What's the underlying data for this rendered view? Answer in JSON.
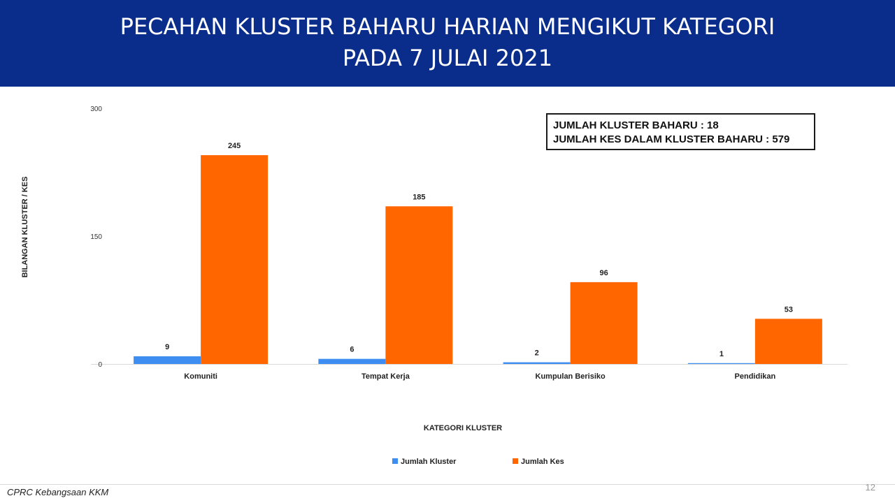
{
  "header": {
    "title_line1": "PECAHAN KLUSTER BAHARU HARIAN MENGIKUT KATEGORI",
    "title_line2": "PADA 7 JULAI 2021",
    "background_color": "#0a2d8c"
  },
  "summary": {
    "line1": "JUMLAH KLUSTER BAHARU : 18",
    "line2": "JUMLAH KES DALAM KLUSTER BAHARU : 579"
  },
  "chart_data": {
    "type": "bar",
    "title": "PECAHAN KLUSTER BAHARU HARIAN MENGIKUT KATEGORI PADA 7 JULAI 2021",
    "xlabel": "KATEGORI KLUSTER",
    "ylabel": "BILANGAN KLUSTER / KES",
    "categories": [
      "Komuniti",
      "Tempat Kerja",
      "Kumpulan Berisiko",
      "Pendidikan"
    ],
    "series": [
      {
        "name": "Jumlah Kluster",
        "values": [
          9,
          6,
          2,
          1
        ],
        "color": "#3d8ef0"
      },
      {
        "name": "Jumlah Kes",
        "values": [
          245,
          185,
          96,
          53
        ],
        "color": "#ff6600"
      }
    ],
    "ylim": [
      0,
      300
    ],
    "yticks": [
      0,
      150,
      300
    ],
    "data_labels": true,
    "grid": false,
    "legend_position": "bottom"
  },
  "footer": {
    "source": "CPRC Kebangsaan KKM",
    "page_number": "12"
  }
}
